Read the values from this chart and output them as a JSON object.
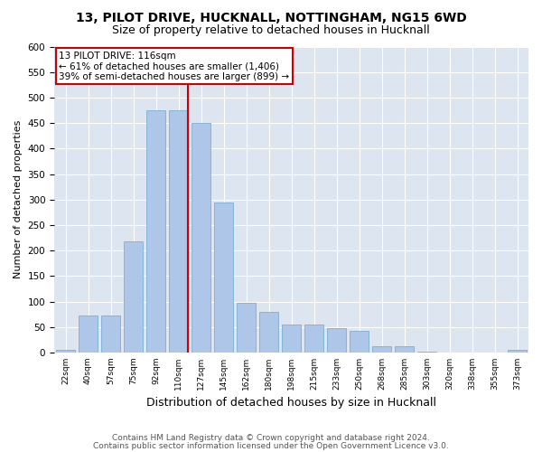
{
  "title1": "13, PILOT DRIVE, HUCKNALL, NOTTINGHAM, NG15 6WD",
  "title2": "Size of property relative to detached houses in Hucknall",
  "xlabel": "Distribution of detached houses by size in Hucknall",
  "ylabel": "Number of detached properties",
  "footer1": "Contains HM Land Registry data © Crown copyright and database right 2024.",
  "footer2": "Contains public sector information licensed under the Open Government Licence v3.0.",
  "categories": [
    "22sqm",
    "40sqm",
    "57sqm",
    "75sqm",
    "92sqm",
    "110sqm",
    "127sqm",
    "145sqm",
    "162sqm",
    "180sqm",
    "198sqm",
    "215sqm",
    "233sqm",
    "250sqm",
    "268sqm",
    "285sqm",
    "303sqm",
    "320sqm",
    "338sqm",
    "355sqm",
    "373sqm"
  ],
  "values": [
    5,
    72,
    72,
    218,
    475,
    475,
    450,
    295,
    97,
    80,
    55,
    55,
    47,
    42,
    12,
    12,
    2,
    0,
    0,
    0,
    5
  ],
  "bar_color": "#aec6e8",
  "bar_edge_color": "#7aafd4",
  "vline_index": 5,
  "vline_color": "#cc0000",
  "box_color": "#cc0000",
  "annotation_title": "13 PILOT DRIVE: 116sqm",
  "annotation_line1": "← 61% of detached houses are smaller (1,406)",
  "annotation_line2": "39% of semi-detached houses are larger (899) →",
  "ylim": [
    0,
    600
  ],
  "yticks": [
    0,
    50,
    100,
    150,
    200,
    250,
    300,
    350,
    400,
    450,
    500,
    550,
    600
  ],
  "bg_color": "#dde5f0",
  "fig_bg_color": "#ffffff",
  "title1_fontsize": 10,
  "title2_fontsize": 9,
  "ylabel_fontsize": 8,
  "xlabel_fontsize": 9,
  "footer_fontsize": 6.5,
  "tick_fontsize": 7.5,
  "xtick_fontsize": 6.5,
  "annot_fontsize": 7.5
}
